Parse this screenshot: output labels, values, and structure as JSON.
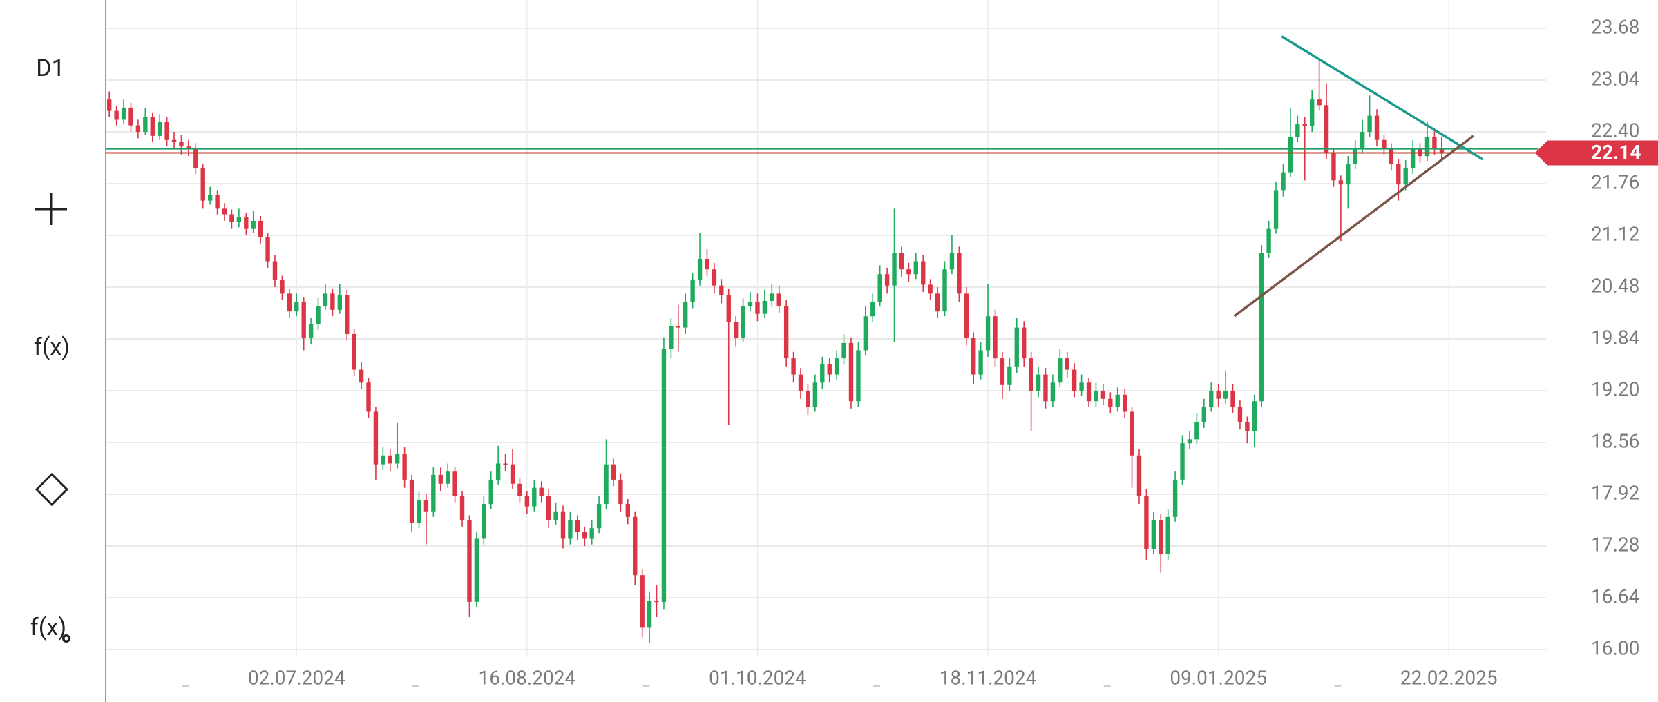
{
  "toolbar": {
    "timeframe": "D1",
    "function": "f(x)",
    "function_settings": "f(x)"
  },
  "chart_data": {
    "type": "candlestick",
    "xlim": [
      0,
      200
    ],
    "xticks": [
      {
        "value": 26,
        "label": "02.07.2024"
      },
      {
        "value": 58,
        "label": "16.08.2024"
      },
      {
        "value": 90,
        "label": "01.10.2024"
      },
      {
        "value": 122,
        "label": "18.11.2024"
      },
      {
        "value": 154,
        "label": "09.01.2025"
      },
      {
        "value": 186,
        "label": "22.02.2025"
      }
    ],
    "ylim": [
      15.36,
      24.03
    ],
    "yticks": [
      {
        "value": 16,
        "label": "16.00"
      },
      16.64,
      17.28,
      17.92,
      18.56,
      {
        "value": 19.2,
        "label": "19.20"
      },
      19.84,
      20.48,
      21.12,
      21.76,
      {
        "value": 22.4,
        "label": "22.40"
      },
      23.04,
      23.68
    ],
    "grid": true,
    "up_color": "#1faa5e",
    "down_color": "#dc3545",
    "current_price": 22.14,
    "reference_lines": [
      {
        "value": 22.19,
        "color": "#1f9e63"
      },
      {
        "value": 22.14,
        "color": "#c0392b"
      }
    ],
    "trendlines": [
      {
        "x1": 162.8,
        "y1": 23.58,
        "x2": 190.7,
        "y2": 22.06,
        "color": "#1a9a8a"
      },
      {
        "x1": 156.2,
        "y1": 20.12,
        "x2": 189.4,
        "y2": 22.35,
        "color": "#7a5548"
      }
    ],
    "candles": [
      [
        22.8,
        22.9,
        22.58,
        22.66
      ],
      [
        22.66,
        22.72,
        22.48,
        22.55
      ],
      [
        22.55,
        22.8,
        22.5,
        22.7
      ],
      [
        22.7,
        22.76,
        22.4,
        22.48
      ],
      [
        22.48,
        22.55,
        22.32,
        22.4
      ],
      [
        22.4,
        22.7,
        22.36,
        22.58
      ],
      [
        22.58,
        22.64,
        22.28,
        22.35
      ],
      [
        22.35,
        22.62,
        22.3,
        22.52
      ],
      [
        22.52,
        22.58,
        22.22,
        22.3
      ],
      [
        22.3,
        22.4,
        22.2,
        22.28
      ],
      [
        22.28,
        22.36,
        22.12,
        22.22
      ],
      [
        22.22,
        22.3,
        22.1,
        22.2
      ],
      [
        22.2,
        22.26,
        21.88,
        21.95
      ],
      [
        21.95,
        22.0,
        21.45,
        21.55
      ],
      [
        21.55,
        21.72,
        21.5,
        21.62
      ],
      [
        21.62,
        21.68,
        21.38,
        21.45
      ],
      [
        21.45,
        21.52,
        21.3,
        21.38
      ],
      [
        21.38,
        21.44,
        21.2,
        21.29
      ],
      [
        21.29,
        21.45,
        21.22,
        21.35
      ],
      [
        21.35,
        21.4,
        21.12,
        21.2
      ],
      [
        21.2,
        21.42,
        21.15,
        21.3
      ],
      [
        21.3,
        21.36,
        21.02,
        21.1
      ],
      [
        21.1,
        21.15,
        20.72,
        20.8
      ],
      [
        20.8,
        20.88,
        20.48,
        20.57
      ],
      [
        20.57,
        20.62,
        20.32,
        20.4
      ],
      [
        20.4,
        20.46,
        20.1,
        20.18
      ],
      [
        20.18,
        20.4,
        20.12,
        20.3
      ],
      [
        20.3,
        20.36,
        19.7,
        19.85
      ],
      [
        19.85,
        20.1,
        19.78,
        20.02
      ],
      [
        20.02,
        20.35,
        19.95,
        20.25
      ],
      [
        20.25,
        20.52,
        20.2,
        20.4
      ],
      [
        20.4,
        20.46,
        20.12,
        20.2
      ],
      [
        20.2,
        20.52,
        20.15,
        20.38
      ],
      [
        20.38,
        20.45,
        19.82,
        19.9
      ],
      [
        19.9,
        19.96,
        19.38,
        19.46
      ],
      [
        19.46,
        19.55,
        19.22,
        19.3
      ],
      [
        19.3,
        19.36,
        18.86,
        18.94
      ],
      [
        18.94,
        19.0,
        18.1,
        18.29
      ],
      [
        18.29,
        18.5,
        18.22,
        18.4
      ],
      [
        18.4,
        18.48,
        18.2,
        18.3
      ],
      [
        18.3,
        18.8,
        18.24,
        18.42
      ],
      [
        18.42,
        18.5,
        18.0,
        18.1
      ],
      [
        18.1,
        18.16,
        17.45,
        17.57
      ],
      [
        17.57,
        17.95,
        17.5,
        17.85
      ],
      [
        17.85,
        17.92,
        17.3,
        17.7
      ],
      [
        17.7,
        18.26,
        17.64,
        18.16
      ],
      [
        18.16,
        18.25,
        17.96,
        18.05
      ],
      [
        18.05,
        18.3,
        18.0,
        18.2
      ],
      [
        18.2,
        18.26,
        17.82,
        17.9
      ],
      [
        17.9,
        17.96,
        17.52,
        17.6
      ],
      [
        17.6,
        17.66,
        16.4,
        16.59
      ],
      [
        16.59,
        17.45,
        16.52,
        17.37
      ],
      [
        17.37,
        17.9,
        17.3,
        17.8
      ],
      [
        17.8,
        18.2,
        17.74,
        18.1
      ],
      [
        18.1,
        18.52,
        18.04,
        18.3
      ],
      [
        18.3,
        18.42,
        18.2,
        18.29
      ],
      [
        18.29,
        18.48,
        17.98,
        18.05
      ],
      [
        18.05,
        18.12,
        17.82,
        17.9
      ],
      [
        17.9,
        17.96,
        17.68,
        17.77
      ],
      [
        17.77,
        18.1,
        17.7,
        18.0
      ],
      [
        18.0,
        18.08,
        17.82,
        17.9
      ],
      [
        17.9,
        17.98,
        17.5,
        17.6
      ],
      [
        17.6,
        17.82,
        17.54,
        17.7
      ],
      [
        17.7,
        17.78,
        17.25,
        17.37
      ],
      [
        17.37,
        17.7,
        17.3,
        17.6
      ],
      [
        17.6,
        17.66,
        17.36,
        17.45
      ],
      [
        17.45,
        17.52,
        17.28,
        17.37
      ],
      [
        17.37,
        17.6,
        17.3,
        17.5
      ],
      [
        17.5,
        17.9,
        17.44,
        17.8
      ],
      [
        17.8,
        18.6,
        17.74,
        18.29
      ],
      [
        18.29,
        18.36,
        18.02,
        18.1
      ],
      [
        18.1,
        18.18,
        17.7,
        17.8
      ],
      [
        17.8,
        17.86,
        17.55,
        17.64
      ],
      [
        17.64,
        17.7,
        16.8,
        16.92
      ],
      [
        16.92,
        17.0,
        16.15,
        16.27
      ],
      [
        16.27,
        16.72,
        16.08,
        16.6
      ],
      [
        16.6,
        16.8,
        16.4,
        16.59
      ],
      [
        16.59,
        19.86,
        16.5,
        19.72
      ],
      [
        19.72,
        20.1,
        19.6,
        20.0
      ],
      [
        20.0,
        20.26,
        19.68,
        19.98
      ],
      [
        19.98,
        20.4,
        19.9,
        20.3
      ],
      [
        20.3,
        20.65,
        20.22,
        20.57
      ],
      [
        20.57,
        21.15,
        20.5,
        20.83
      ],
      [
        20.83,
        20.95,
        20.62,
        20.7
      ],
      [
        20.7,
        20.78,
        20.4,
        20.5
      ],
      [
        20.5,
        20.58,
        20.28,
        20.38
      ],
      [
        20.38,
        20.46,
        18.78,
        20.05
      ],
      [
        20.05,
        20.12,
        19.75,
        19.85
      ],
      [
        19.85,
        20.34,
        19.8,
        20.25
      ],
      [
        20.25,
        20.42,
        20.18,
        20.3
      ],
      [
        20.3,
        20.4,
        20.06,
        20.15
      ],
      [
        20.15,
        20.45,
        20.1,
        20.31
      ],
      [
        20.31,
        20.52,
        20.24,
        20.4
      ],
      [
        20.4,
        20.5,
        20.16,
        20.25
      ],
      [
        20.25,
        20.32,
        19.5,
        19.6
      ],
      [
        19.6,
        19.68,
        19.3,
        19.4
      ],
      [
        19.4,
        19.48,
        19.1,
        19.2
      ],
      [
        19.2,
        19.28,
        18.9,
        19.0
      ],
      [
        19.0,
        19.4,
        18.94,
        19.3
      ],
      [
        19.3,
        19.62,
        19.22,
        19.53
      ],
      [
        19.53,
        19.6,
        19.3,
        19.4
      ],
      [
        19.4,
        19.7,
        19.34,
        19.6
      ],
      [
        19.6,
        19.9,
        19.52,
        19.79
      ],
      [
        19.79,
        19.86,
        18.98,
        19.07
      ],
      [
        19.07,
        19.8,
        19.0,
        19.7
      ],
      [
        19.7,
        20.25,
        19.64,
        20.12
      ],
      [
        20.12,
        20.4,
        20.05,
        20.3
      ],
      [
        20.3,
        20.75,
        20.24,
        20.64
      ],
      [
        20.64,
        20.72,
        20.4,
        20.5
      ],
      [
        20.5,
        21.45,
        19.8,
        20.9
      ],
      [
        20.9,
        20.98,
        20.6,
        20.7
      ],
      [
        20.7,
        20.78,
        20.55,
        20.64
      ],
      [
        20.64,
        20.9,
        20.58,
        20.8
      ],
      [
        20.8,
        20.88,
        20.42,
        20.51
      ],
      [
        20.51,
        20.58,
        20.32,
        20.4
      ],
      [
        20.4,
        20.48,
        20.1,
        20.18
      ],
      [
        20.18,
        20.8,
        20.12,
        20.7
      ],
      [
        20.7,
        21.12,
        20.64,
        20.9
      ],
      [
        20.9,
        20.98,
        20.3,
        20.4
      ],
      [
        20.4,
        20.48,
        19.76,
        19.85
      ],
      [
        19.85,
        19.92,
        19.28,
        19.4
      ],
      [
        19.4,
        19.8,
        19.34,
        19.7
      ],
      [
        19.7,
        20.52,
        19.62,
        20.12
      ],
      [
        20.12,
        20.2,
        19.5,
        19.6
      ],
      [
        19.6,
        19.68,
        19.1,
        19.27
      ],
      [
        19.27,
        19.6,
        19.2,
        19.5
      ],
      [
        19.5,
        20.1,
        19.42,
        19.98
      ],
      [
        19.98,
        20.06,
        19.5,
        19.6
      ],
      [
        19.6,
        19.68,
        18.7,
        19.2
      ],
      [
        19.2,
        19.5,
        19.12,
        19.4
      ],
      [
        19.4,
        19.48,
        18.98,
        19.07
      ],
      [
        19.07,
        19.4,
        19.0,
        19.3
      ],
      [
        19.3,
        19.72,
        19.24,
        19.6
      ],
      [
        19.6,
        19.68,
        19.36,
        19.46
      ],
      [
        19.46,
        19.54,
        19.12,
        19.2
      ],
      [
        19.2,
        19.4,
        19.14,
        19.3
      ],
      [
        19.3,
        19.36,
        19.0,
        19.07
      ],
      [
        19.07,
        19.3,
        19.0,
        19.2
      ],
      [
        19.2,
        19.28,
        19.02,
        19.1
      ],
      [
        19.1,
        19.18,
        18.92,
        19.0
      ],
      [
        19.0,
        19.24,
        18.94,
        19.15
      ],
      [
        19.15,
        19.22,
        18.86,
        18.94
      ],
      [
        18.94,
        19.0,
        18.0,
        18.4
      ],
      [
        18.4,
        18.48,
        17.8,
        17.9
      ],
      [
        17.9,
        17.98,
        17.1,
        17.24
      ],
      [
        17.24,
        17.7,
        17.18,
        17.6
      ],
      [
        17.6,
        17.68,
        16.95,
        17.18
      ],
      [
        17.18,
        17.74,
        17.1,
        17.64
      ],
      [
        17.64,
        18.2,
        17.58,
        18.1
      ],
      [
        18.1,
        18.65,
        18.04,
        18.55
      ],
      [
        18.55,
        18.7,
        18.48,
        18.6
      ],
      [
        18.6,
        18.92,
        18.54,
        18.81
      ],
      [
        18.81,
        19.1,
        18.74,
        19.0
      ],
      [
        19.0,
        19.3,
        18.94,
        19.2
      ],
      [
        19.2,
        19.28,
        19.0,
        19.1
      ],
      [
        19.1,
        19.45,
        19.04,
        19.2
      ],
      [
        19.2,
        19.28,
        18.92,
        19.0
      ],
      [
        19.0,
        19.08,
        18.72,
        18.81
      ],
      [
        18.81,
        18.88,
        18.55,
        18.7
      ],
      [
        18.7,
        19.15,
        18.5,
        19.07
      ],
      [
        19.07,
        21.0,
        19.0,
        20.9
      ],
      [
        20.9,
        21.3,
        20.84,
        21.2
      ],
      [
        21.2,
        21.78,
        21.14,
        21.68
      ],
      [
        21.68,
        22.0,
        21.6,
        21.9
      ],
      [
        21.9,
        22.7,
        21.84,
        22.34
      ],
      [
        22.34,
        22.6,
        22.28,
        22.5
      ],
      [
        22.5,
        22.58,
        21.8,
        22.47
      ],
      [
        22.47,
        22.92,
        22.4,
        22.8
      ],
      [
        22.8,
        23.3,
        22.66,
        22.73
      ],
      [
        22.73,
        23.0,
        22.06,
        22.14
      ],
      [
        22.14,
        22.2,
        21.72,
        21.8
      ],
      [
        21.8,
        21.86,
        21.05,
        21.75
      ],
      [
        21.75,
        22.1,
        21.45,
        22.0
      ],
      [
        22.0,
        22.3,
        21.94,
        22.2
      ],
      [
        22.2,
        22.55,
        22.14,
        22.4
      ],
      [
        22.4,
        22.85,
        22.34,
        22.6
      ],
      [
        22.6,
        22.68,
        22.22,
        22.3
      ],
      [
        22.3,
        22.36,
        22.12,
        22.2
      ],
      [
        22.2,
        22.26,
        21.92,
        22.0
      ],
      [
        22.0,
        22.06,
        21.55,
        21.75
      ],
      [
        21.75,
        22.05,
        21.68,
        21.95
      ],
      [
        21.95,
        22.3,
        21.88,
        22.2
      ],
      [
        22.2,
        22.26,
        22.02,
        22.1
      ],
      [
        22.1,
        22.52,
        22.04,
        22.34
      ],
      [
        22.34,
        22.45,
        22.12,
        22.2
      ],
      [
        22.2,
        22.34,
        22.06,
        22.14
      ]
    ]
  }
}
